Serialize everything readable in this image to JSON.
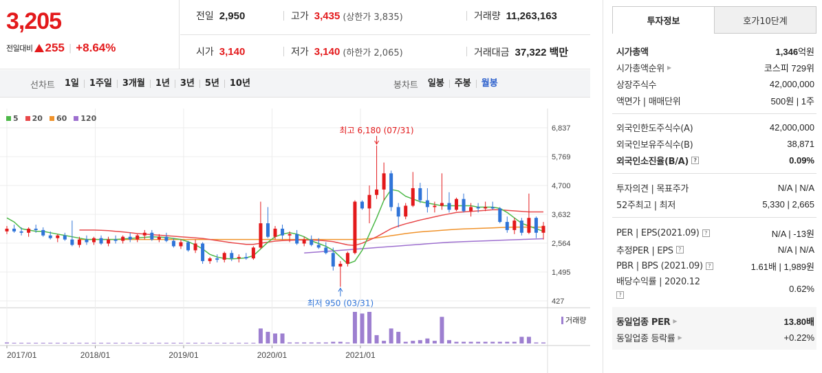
{
  "quote": {
    "price": "3,205",
    "change_label": "전일대비",
    "change_value": "255",
    "change_rate": "+8.64%",
    "prev_close_label": "전일",
    "prev_close": "2,950",
    "high_label": "고가",
    "high": "3,435",
    "upper_limit": "(상한가 3,835)",
    "volume_label": "거래량",
    "volume": "11,263,163",
    "open_label": "시가",
    "open": "3,140",
    "low_label": "저가",
    "low": "3,140",
    "lower_limit": "(하한가 2,065)",
    "amount_label": "거래대금",
    "amount": "37,322 백만"
  },
  "period_bar": {
    "line_title": "선차트",
    "line_items": [
      "1일",
      "1주일",
      "3개월",
      "1년",
      "3년",
      "5년",
      "10년"
    ],
    "candle_title": "봉차트",
    "candle_items": [
      "일봉",
      "주봉",
      "월봉"
    ],
    "active_candle": "월봉"
  },
  "chart_data": {
    "type": "candlestick",
    "title": "",
    "legend": [
      {
        "name": "5",
        "color": "#4cb847"
      },
      {
        "name": "20",
        "color": "#e8484a"
      },
      {
        "name": "60",
        "color": "#f0922a"
      },
      {
        "name": "120",
        "color": "#9d6fcf"
      }
    ],
    "y_ticks": [
      "6,837",
      "5,769",
      "4,700",
      "3,632",
      "2,564",
      "1,495",
      "427"
    ],
    "ylim": [
      427,
      6837
    ],
    "x_ticks": [
      "2017/01",
      "2018/01",
      "2019/01",
      "2020/01",
      "2021/01"
    ],
    "max_annotation": "최고 6,180 (07/31)",
    "min_annotation": "최저 950 (03/31)",
    "volume_label": "거래량",
    "up_color": "#e3191b",
    "down_color": "#2f74d8",
    "candles": [
      [
        3000,
        3200,
        2900,
        3100
      ],
      [
        3100,
        3250,
        2950,
        3000
      ],
      [
        3000,
        3150,
        2850,
        2950
      ],
      [
        2950,
        3150,
        2800,
        3100
      ],
      [
        3100,
        3250,
        2950,
        3050
      ],
      [
        3050,
        3150,
        2800,
        2850
      ],
      [
        2850,
        3000,
        2700,
        2750
      ],
      [
        2750,
        2900,
        2600,
        2850
      ],
      [
        2850,
        2950,
        2650,
        2700
      ],
      [
        2700,
        3400,
        2450,
        2500
      ],
      [
        2500,
        2800,
        2400,
        2700
      ],
      [
        2700,
        2850,
        2500,
        2600
      ],
      [
        2600,
        2800,
        2500,
        2750
      ],
      [
        2750,
        2850,
        2500,
        2550
      ],
      [
        2550,
        2800,
        2450,
        2700
      ],
      [
        2700,
        2850,
        2550,
        2650
      ],
      [
        2650,
        2850,
        2550,
        2800
      ],
      [
        2800,
        2950,
        2600,
        2700
      ],
      [
        2700,
        2900,
        2600,
        2850
      ],
      [
        2850,
        3050,
        2700,
        2950
      ],
      [
        2950,
        3050,
        2650,
        2700
      ],
      [
        2700,
        2900,
        2600,
        2800
      ],
      [
        2800,
        2950,
        2600,
        2650
      ],
      [
        2650,
        2750,
        2400,
        2450
      ],
      [
        2450,
        2700,
        2350,
        2600
      ],
      [
        2600,
        2650,
        2250,
        2300
      ],
      [
        2300,
        2700,
        2200,
        2550
      ],
      [
        2550,
        2600,
        1800,
        1900
      ],
      [
        1900,
        2050,
        1800,
        2000
      ],
      [
        2000,
        2150,
        1850,
        1950
      ],
      [
        1950,
        2250,
        1850,
        2200
      ],
      [
        2200,
        2300,
        1900,
        2000
      ],
      [
        2000,
        2150,
        1850,
        2050
      ],
      [
        2050,
        2200,
        1950,
        2000
      ],
      [
        2000,
        2450,
        1950,
        2400
      ],
      [
        2400,
        4100,
        2350,
        3300
      ],
      [
        3300,
        3900,
        2750,
        2800
      ],
      [
        2800,
        3200,
        2700,
        3100
      ],
      [
        3100,
        3250,
        2700,
        2850
      ],
      [
        2850,
        3000,
        2600,
        2900
      ],
      [
        2900,
        3050,
        2500,
        2550
      ],
      [
        2550,
        2800,
        2450,
        2700
      ],
      [
        2700,
        2850,
        2450,
        2500
      ],
      [
        2500,
        2750,
        2350,
        2400
      ],
      [
        2400,
        2600,
        2150,
        2200
      ],
      [
        2200,
        2400,
        1550,
        1700
      ],
      [
        1700,
        1900,
        950,
        1800
      ],
      [
        1800,
        2250,
        1700,
        2200
      ],
      [
        2200,
        4150,
        2150,
        4100
      ],
      [
        4100,
        4150,
        3800,
        3850
      ],
      [
        3850,
        4700,
        3300,
        4350
      ],
      [
        4350,
        6180,
        4200,
        4550
      ],
      [
        4550,
        5550,
        4150,
        5150
      ],
      [
        5150,
        5250,
        3750,
        3900
      ],
      [
        3900,
        4050,
        3150,
        3550
      ],
      [
        3550,
        4050,
        3450,
        3950
      ],
      [
        3950,
        5200,
        3900,
        4600
      ],
      [
        4600,
        4800,
        4050,
        4150
      ],
      [
        4150,
        4600,
        3700,
        3900
      ],
      [
        3900,
        4100,
        3700,
        3950
      ],
      [
        3950,
        5150,
        3800,
        4050
      ],
      [
        4050,
        4450,
        3700,
        3800
      ],
      [
        3800,
        4250,
        3750,
        4200
      ],
      [
        4200,
        4400,
        3700,
        3750
      ],
      [
        3750,
        4050,
        3550,
        3900
      ],
      [
        3900,
        4050,
        3700,
        3850
      ],
      [
        3850,
        4100,
        3750,
        3900
      ],
      [
        3900,
        4100,
        3800,
        3850
      ],
      [
        3850,
        3900,
        3300,
        3350
      ],
      [
        3350,
        3550,
        2950,
        3050
      ],
      [
        3050,
        3500,
        2900,
        3400
      ],
      [
        3400,
        3500,
        2850,
        2950
      ],
      [
        2950,
        4400,
        2900,
        3500
      ],
      [
        3500,
        3550,
        2750,
        2950
      ],
      [
        2950,
        3350,
        2700,
        3205
      ]
    ],
    "ma": {
      "5": [
        3500,
        3350,
        3100,
        3050,
        3000,
        3000,
        2950,
        2900,
        2850,
        2800,
        2750,
        2700,
        2700,
        2700,
        2700,
        2700,
        2720,
        2740,
        2760,
        2780,
        2800,
        2790,
        2770,
        2740,
        2700,
        2620,
        2500,
        2350,
        2150,
        2050,
        2000,
        1980,
        2000,
        2020,
        2100,
        2350,
        2600,
        2800,
        2900,
        2950,
        2900,
        2800,
        2650,
        2550,
        2450,
        2300,
        2050,
        1800,
        1900,
        2300,
        2900,
        3500,
        4150,
        4550,
        4500,
        4300,
        4200,
        4100,
        4050,
        4000,
        3950,
        3950,
        3950,
        3950,
        3950,
        3900,
        3900,
        3900,
        3850,
        3700,
        3500,
        3300,
        3200,
        3100,
        3000
      ],
      "20": [
        null,
        null,
        null,
        null,
        null,
        null,
        null,
        null,
        null,
        null,
        3050,
        3050,
        3050,
        3040,
        3030,
        3000,
        2980,
        2950,
        2920,
        2900,
        2880,
        2860,
        2840,
        2820,
        2800,
        2780,
        2760,
        2740,
        2700,
        2660,
        2620,
        2580,
        2550,
        2520,
        2520,
        2560,
        2600,
        2640,
        2660,
        2670,
        2680,
        2680,
        2680,
        2670,
        2650,
        2620,
        2560,
        2500,
        2480,
        2560,
        2680,
        2800,
        2950,
        3100,
        3200,
        3280,
        3350,
        3420,
        3480,
        3540,
        3600,
        3650,
        3700,
        3720,
        3740,
        3760,
        3780,
        3800,
        3800,
        3780,
        3760,
        3740,
        3720,
        3720,
        3720
      ],
      "60": [
        null,
        null,
        null,
        null,
        null,
        null,
        null,
        null,
        null,
        null,
        2700,
        2700,
        2700,
        2700,
        2700,
        2700,
        2700,
        2700,
        2700,
        2700,
        2700,
        2700,
        2700,
        2700,
        2700,
        2700,
        2700,
        2700,
        2700,
        2700,
        2700,
        2700,
        2700,
        2700,
        2700,
        2700,
        2700,
        2700,
        2700,
        2700,
        2700,
        2700,
        2700,
        2700,
        2700,
        2700,
        2700,
        2700,
        2700,
        2710,
        2730,
        2760,
        2800,
        2840,
        2880,
        2920,
        2950,
        2980,
        3000,
        3020,
        3040,
        3060,
        3080,
        3090,
        3100,
        3110,
        3120,
        3130,
        3140,
        3150,
        3160,
        3160,
        3160,
        3160,
        3160
      ],
      "120": [
        null,
        null,
        null,
        null,
        null,
        null,
        null,
        null,
        null,
        null,
        null,
        null,
        null,
        null,
        null,
        null,
        null,
        null,
        null,
        null,
        null,
        null,
        null,
        null,
        null,
        null,
        null,
        null,
        null,
        null,
        null,
        null,
        null,
        null,
        null,
        null,
        null,
        null,
        null,
        null,
        null,
        2200,
        2220,
        2240,
        2260,
        2280,
        2300,
        2320,
        2340,
        2360,
        2380,
        2400,
        2420,
        2440,
        2460,
        2480,
        2500,
        2520,
        2540,
        2560,
        2580,
        2600,
        2610,
        2620,
        2630,
        2640,
        2650,
        2660,
        2670,
        2680,
        2690,
        2700,
        2710,
        2720,
        2730
      ]
    },
    "volume": [
      3,
      2,
      2,
      2,
      2,
      2,
      2,
      2,
      2,
      2,
      2,
      2,
      2,
      2,
      2,
      2,
      2,
      2,
      2,
      2,
      2,
      2,
      2,
      2,
      2,
      2,
      2,
      2,
      2,
      2,
      2,
      2,
      2,
      2,
      2,
      45,
      35,
      30,
      30,
      3,
      3,
      3,
      3,
      3,
      3,
      5,
      5,
      3,
      95,
      90,
      95,
      25,
      8,
      45,
      35,
      5,
      8,
      10,
      15,
      8,
      80,
      10,
      5,
      5,
      5,
      5,
      5,
      5,
      5,
      5,
      5,
      20,
      20,
      3,
      3
    ]
  },
  "invest_info": {
    "tabs": [
      "투자정보",
      "호가10단계"
    ],
    "rows": [
      {
        "k": "시가총액",
        "v_strong": "1,346",
        "v": "억원"
      },
      {
        "k": "시가총액순위",
        "v": "코스피 729위"
      },
      {
        "k": "상장주식수",
        "v": "42,000,000"
      },
      {
        "k": "액면가 | 매매단위",
        "v": "500원 | 1주"
      },
      {
        "k": "외국인한도주식수(A)",
        "v": "42,000,000"
      },
      {
        "k": "외국인보유주식수(B)",
        "v": "38,871"
      },
      {
        "k": "외국인소진율(B/A)",
        "v": "0.09%"
      },
      {
        "k": "투자의견 | 목표주가",
        "v": "N/A | N/A"
      },
      {
        "k": "52주최고 | 최저",
        "v": "5,330 | 2,665"
      },
      {
        "k": "PER | EPS(2021.09)",
        "v": "N/A | -13원"
      },
      {
        "k": "추정PER | EPS",
        "v": "N/A | N/A"
      },
      {
        "k": "PBR | BPS (2021.09)",
        "v": "1.61배 | 1,989원"
      },
      {
        "k": "배당수익률 | 2020.12",
        "v": "0.62%"
      },
      {
        "k": "동일업종 PER",
        "v": "13.80배"
      },
      {
        "k": "동일업종 등락률",
        "v": "+0.22%"
      }
    ]
  }
}
